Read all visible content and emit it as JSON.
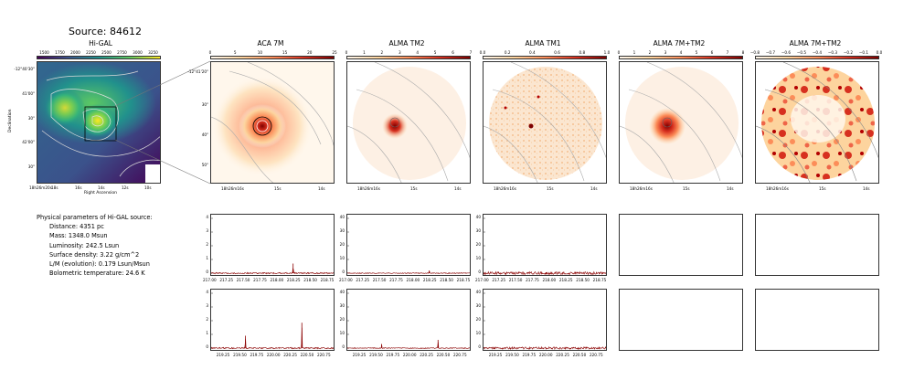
{
  "source_title": "Source: 84612",
  "panels": [
    {
      "title": "Hi-GAL",
      "cbar_ticks": [
        "1500",
        "1750",
        "2000",
        "2250",
        "2500",
        "2750",
        "3000",
        "3250"
      ],
      "cmap": "viridis"
    },
    {
      "title": "ACA 7M",
      "cbar_ticks": [
        "0",
        "5",
        "10",
        "15",
        "20",
        "25"
      ],
      "cmap": "orrd"
    },
    {
      "title": "ALMA TM2",
      "cbar_ticks": [
        "0",
        "1",
        "2",
        "3",
        "4",
        "5",
        "6",
        "7"
      ],
      "cmap": "orrd"
    },
    {
      "title": "ALMA TM1",
      "cbar_ticks": [
        "0.0",
        "0.2",
        "0.4",
        "0.6",
        "0.8",
        "1.0"
      ],
      "cmap": "orrd"
    },
    {
      "title": "ALMA 7M+TM2",
      "cbar_ticks": [
        "0",
        "1",
        "2",
        "3",
        "4",
        "5",
        "6",
        "7",
        "8"
      ],
      "cmap": "orrd"
    },
    {
      "title": "ALMA 7M+TM2",
      "cbar_ticks": [
        "−0.8",
        "−0.7",
        "−0.6",
        "−0.5",
        "−0.4",
        "−0.3",
        "−0.2",
        "−0.1",
        "0.0"
      ],
      "cmap": "orrd"
    }
  ],
  "higal_axes": {
    "ylabel": "Declination",
    "xlabel": "Right Ascension",
    "yticks": [
      "-12°40'30\"",
      "41'00\"",
      "30\"",
      "42'00\"",
      "30\""
    ],
    "xticks": [
      "18h26m20s",
      "18s",
      "16s",
      "14s",
      "12s",
      "10s"
    ]
  },
  "map_axes": {
    "yticks_aca": [
      "-12°41'20\"",
      "30\"",
      "40\"",
      "50\""
    ],
    "xticks": [
      "18h26m16s",
      "15s",
      "14s"
    ]
  },
  "physical_params": {
    "heading": "Physical parameters of Hi-GAL source:",
    "items": [
      "Distance: 4351 pc",
      "Mass: 1348.0 Msun",
      "Luminosity: 242.5 Lsun",
      "Surface density: 3.22 g/cm^2",
      "L/M (evolution): 0.179 Lsun/Msun",
      "Bolometric temperature: 24.6 K"
    ]
  },
  "chart_data": [
    {
      "type": "line",
      "panel": "spectrum-row1-aca",
      "ylim": [
        0,
        4
      ],
      "yticks": [
        "0",
        "1",
        "2",
        "3",
        "4"
      ],
      "xlim": [
        217.0,
        218.85
      ],
      "xticks": [
        "217.00",
        "217.25",
        "217.50",
        "217.75",
        "218.00",
        "218.25",
        "218.50",
        "218.75"
      ],
      "noise": 0.05,
      "peaks": [
        [
          218.22,
          0.7
        ]
      ]
    },
    {
      "type": "line",
      "panel": "spectrum-row1-tm2",
      "ylim": [
        0,
        40
      ],
      "yticks": [
        "0",
        "10",
        "20",
        "30",
        "40"
      ],
      "xlim": [
        217.0,
        218.85
      ],
      "xticks": [
        "217.00",
        "217.25",
        "217.50",
        "217.75",
        "218.00",
        "218.25",
        "218.50",
        "218.75"
      ],
      "noise": 0.3,
      "peaks": [
        [
          218.22,
          2.0
        ]
      ]
    },
    {
      "type": "line",
      "panel": "spectrum-row1-tm1",
      "ylim": [
        0,
        40
      ],
      "yticks": [
        "0",
        "10",
        "20",
        "30",
        "40"
      ],
      "xlim": [
        217.0,
        218.85
      ],
      "xticks": [
        "217.00",
        "217.25",
        "217.50",
        "217.75",
        "218.00",
        "218.25",
        "218.50",
        "218.75"
      ],
      "noise": 1.0,
      "peaks": []
    },
    {
      "type": "line",
      "panel": "spectrum-row2-aca",
      "ylim": [
        0,
        4
      ],
      "yticks": [
        "0",
        "1",
        "2",
        "3",
        "4"
      ],
      "xlim": [
        219.05,
        220.9
      ],
      "xticks": [
        "219.25",
        "219.50",
        "219.75",
        "220.00",
        "220.25",
        "220.50",
        "220.75"
      ],
      "noise": 0.05,
      "peaks": [
        [
          219.56,
          0.9
        ],
        [
          220.4,
          1.85
        ]
      ]
    },
    {
      "type": "line",
      "panel": "spectrum-row2-tm2",
      "ylim": [
        0,
        40
      ],
      "yticks": [
        "0",
        "10",
        "20",
        "30",
        "40"
      ],
      "xlim": [
        219.05,
        220.9
      ],
      "xticks": [
        "219.25",
        "219.50",
        "219.75",
        "220.00",
        "220.25",
        "220.50",
        "220.75"
      ],
      "noise": 0.3,
      "peaks": [
        [
          219.56,
          3.0
        ],
        [
          220.4,
          6.0
        ]
      ]
    },
    {
      "type": "line",
      "panel": "spectrum-row2-tm1",
      "ylim": [
        0,
        40
      ],
      "yticks": [
        "0",
        "10",
        "20",
        "30",
        "40"
      ],
      "xlim": [
        219.05,
        220.9
      ],
      "xticks": [
        "219.25",
        "219.50",
        "219.75",
        "220.00",
        "220.25",
        "220.50",
        "220.75"
      ],
      "noise": 0.8,
      "peaks": []
    }
  ],
  "colors": {
    "spectrum": "#8b0000",
    "contour": "#888888",
    "cmap_high": "#7f0000"
  }
}
